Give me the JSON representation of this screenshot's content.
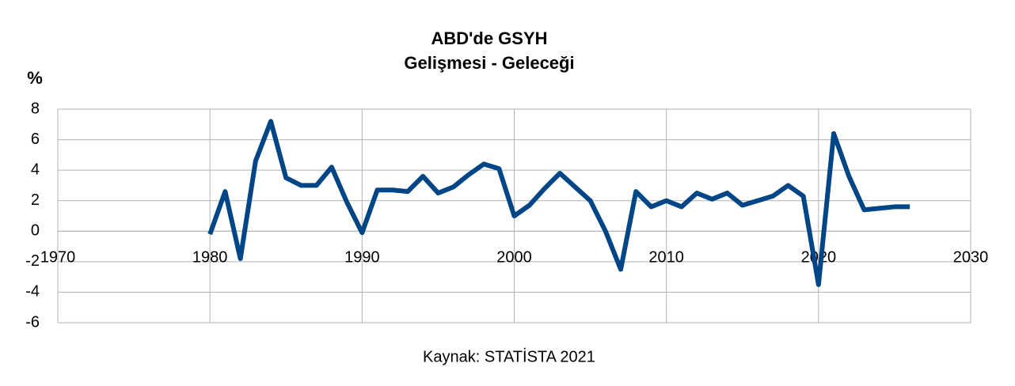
{
  "chart_data": {
    "type": "line",
    "title": "ABD'de GSYH",
    "subtitle": "Gelişmesi - Geleceği",
    "y_label": "%",
    "source": "Kaynak: STATİSTA 2021",
    "x": [
      1980,
      1981,
      1982,
      1983,
      1984,
      1985,
      1986,
      1987,
      1988,
      1989,
      1990,
      1991,
      1992,
      1993,
      1994,
      1995,
      1996,
      1997,
      1998,
      1999,
      2000,
      2001,
      2002,
      2003,
      2004,
      2005,
      2006,
      2007,
      2008,
      2009,
      2010,
      2011,
      2012,
      2013,
      2014,
      2015,
      2016,
      2017,
      2018,
      2019,
      2020,
      2021,
      2022,
      2023,
      2024,
      2025,
      2026
    ],
    "values": [
      -0.2,
      2.6,
      -1.8,
      4.6,
      7.2,
      3.5,
      3.0,
      3.0,
      4.2,
      1.9,
      -0.1,
      2.7,
      2.7,
      2.6,
      3.6,
      2.5,
      2.9,
      3.7,
      4.4,
      4.1,
      1.0,
      1.7,
      2.8,
      3.8,
      2.9,
      2.0,
      0.0,
      -2.5,
      2.6,
      1.6,
      2.0,
      1.6,
      2.5,
      2.1,
      2.5,
      1.7,
      2.0,
      2.3,
      3.0,
      2.3,
      -3.5,
      6.4,
      3.6,
      1.4,
      1.5,
      1.6,
      1.6
    ],
    "color": "#004586",
    "xlim": [
      1970,
      2030
    ],
    "xticks": [
      1970,
      1980,
      1990,
      2000,
      2010,
      2020,
      2030
    ],
    "ylim": [
      -6,
      8
    ],
    "yticks": [
      -6,
      -4,
      -2,
      0,
      2,
      4,
      6,
      8
    ],
    "grid": true
  }
}
